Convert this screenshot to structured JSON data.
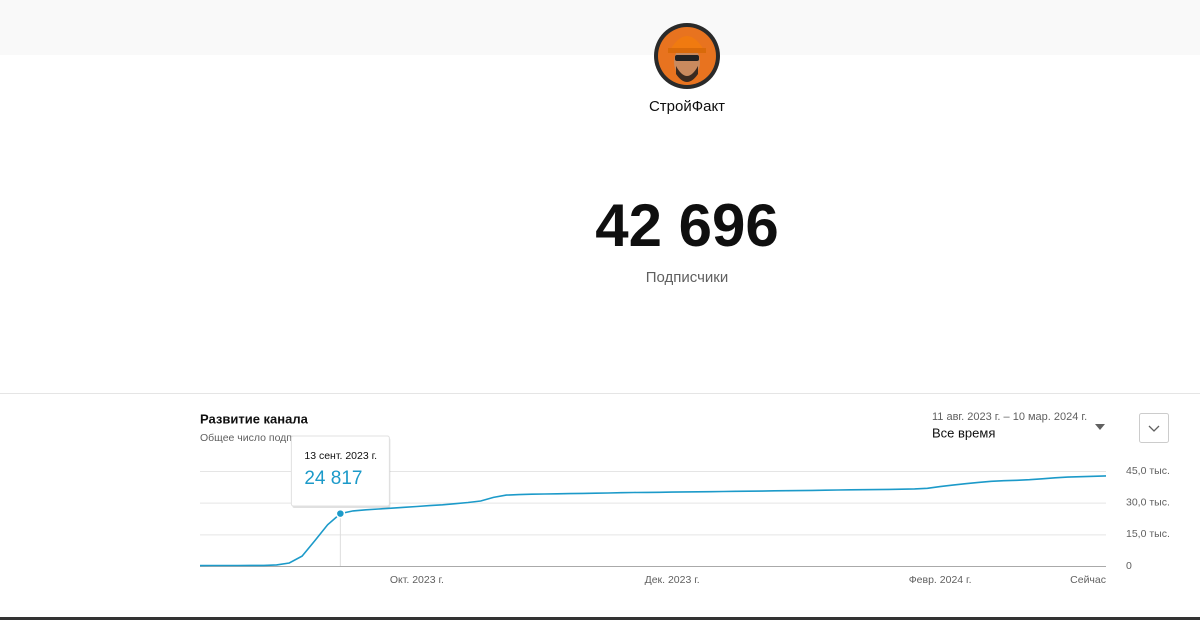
{
  "channel": {
    "name": "СтройФакт",
    "subscriber_count": "42 696",
    "subscriber_label": "Подписчики"
  },
  "panel": {
    "title": "Развитие канала",
    "subtitle": "Общее число подпи",
    "date_range": "11 авг. 2023 г. – 10 мар. 2024 г.",
    "period": "Все время"
  },
  "chart_data": {
    "type": "line",
    "categories": [
      null,
      null,
      null,
      null,
      null,
      null,
      null,
      null,
      null,
      null,
      null,
      null,
      null,
      null,
      null,
      null,
      null,
      "Окт. 2023 г.",
      null,
      null,
      null,
      null,
      null,
      null,
      null,
      null,
      null,
      null,
      null,
      null,
      null,
      null,
      null,
      null,
      null,
      null,
      null,
      "Дек. 2023 г.",
      null,
      null,
      null,
      null,
      null,
      null,
      null,
      null,
      null,
      null,
      null,
      null,
      null,
      null,
      null,
      null,
      null,
      null,
      null,
      null,
      "Февр. 2024 г.",
      null,
      null,
      null,
      null,
      null,
      null,
      null,
      null,
      null,
      null,
      null,
      null,
      "Сейчас"
    ],
    "series": [
      {
        "name": "Общее число подпи",
        "color": "#1c9ac9",
        "values": [
          200,
          220,
          240,
          260,
          280,
          300,
          500,
          1400,
          4700,
          12000,
          19500,
          24817,
          26100,
          26600,
          27000,
          27400,
          27800,
          28200,
          28600,
          29000,
          29500,
          30100,
          30800,
          32500,
          33600,
          33800,
          34000,
          34100,
          34200,
          34300,
          34400,
          34500,
          34600,
          34700,
          34800,
          34850,
          34900,
          35000,
          35100,
          35150,
          35200,
          35300,
          35400,
          35450,
          35500,
          35600,
          35650,
          35700,
          35800,
          35900,
          36000,
          36100,
          36150,
          36200,
          36300,
          36400,
          36500,
          36800,
          37600,
          38300,
          39000,
          39600,
          40100,
          40400,
          40600,
          40900,
          41300,
          41800,
          42100,
          42300,
          42500,
          42696
        ],
        "value_labels": [
          null,
          null,
          null,
          null,
          null,
          null,
          null,
          null,
          null,
          null,
          null,
          "24 817",
          null,
          null,
          null,
          null,
          null,
          null,
          null,
          null,
          null,
          null,
          null,
          null,
          null,
          null,
          null,
          null,
          null,
          null,
          null,
          null,
          null,
          null,
          null,
          null,
          null,
          null,
          null,
          null,
          null,
          null,
          null,
          null,
          null,
          null,
          null,
          null,
          null,
          null,
          null,
          null,
          null,
          null,
          null,
          null,
          null,
          null,
          null,
          null,
          null,
          null,
          null,
          null,
          null,
          null,
          null,
          null,
          null,
          null,
          null,
          null
        ]
      }
    ],
    "tooltip_title": "13 сент. 2023 г.",
    "ylim": [
      0,
      45000
    ],
    "yticks": [
      0,
      {
        "value": 15000,
        "label": "15,0 тыс."
      },
      {
        "value": 30000,
        "label": "30,0 тыс."
      },
      {
        "value": 45000,
        "label": "45,0 тыс."
      }
    ],
    "grid": true
  }
}
